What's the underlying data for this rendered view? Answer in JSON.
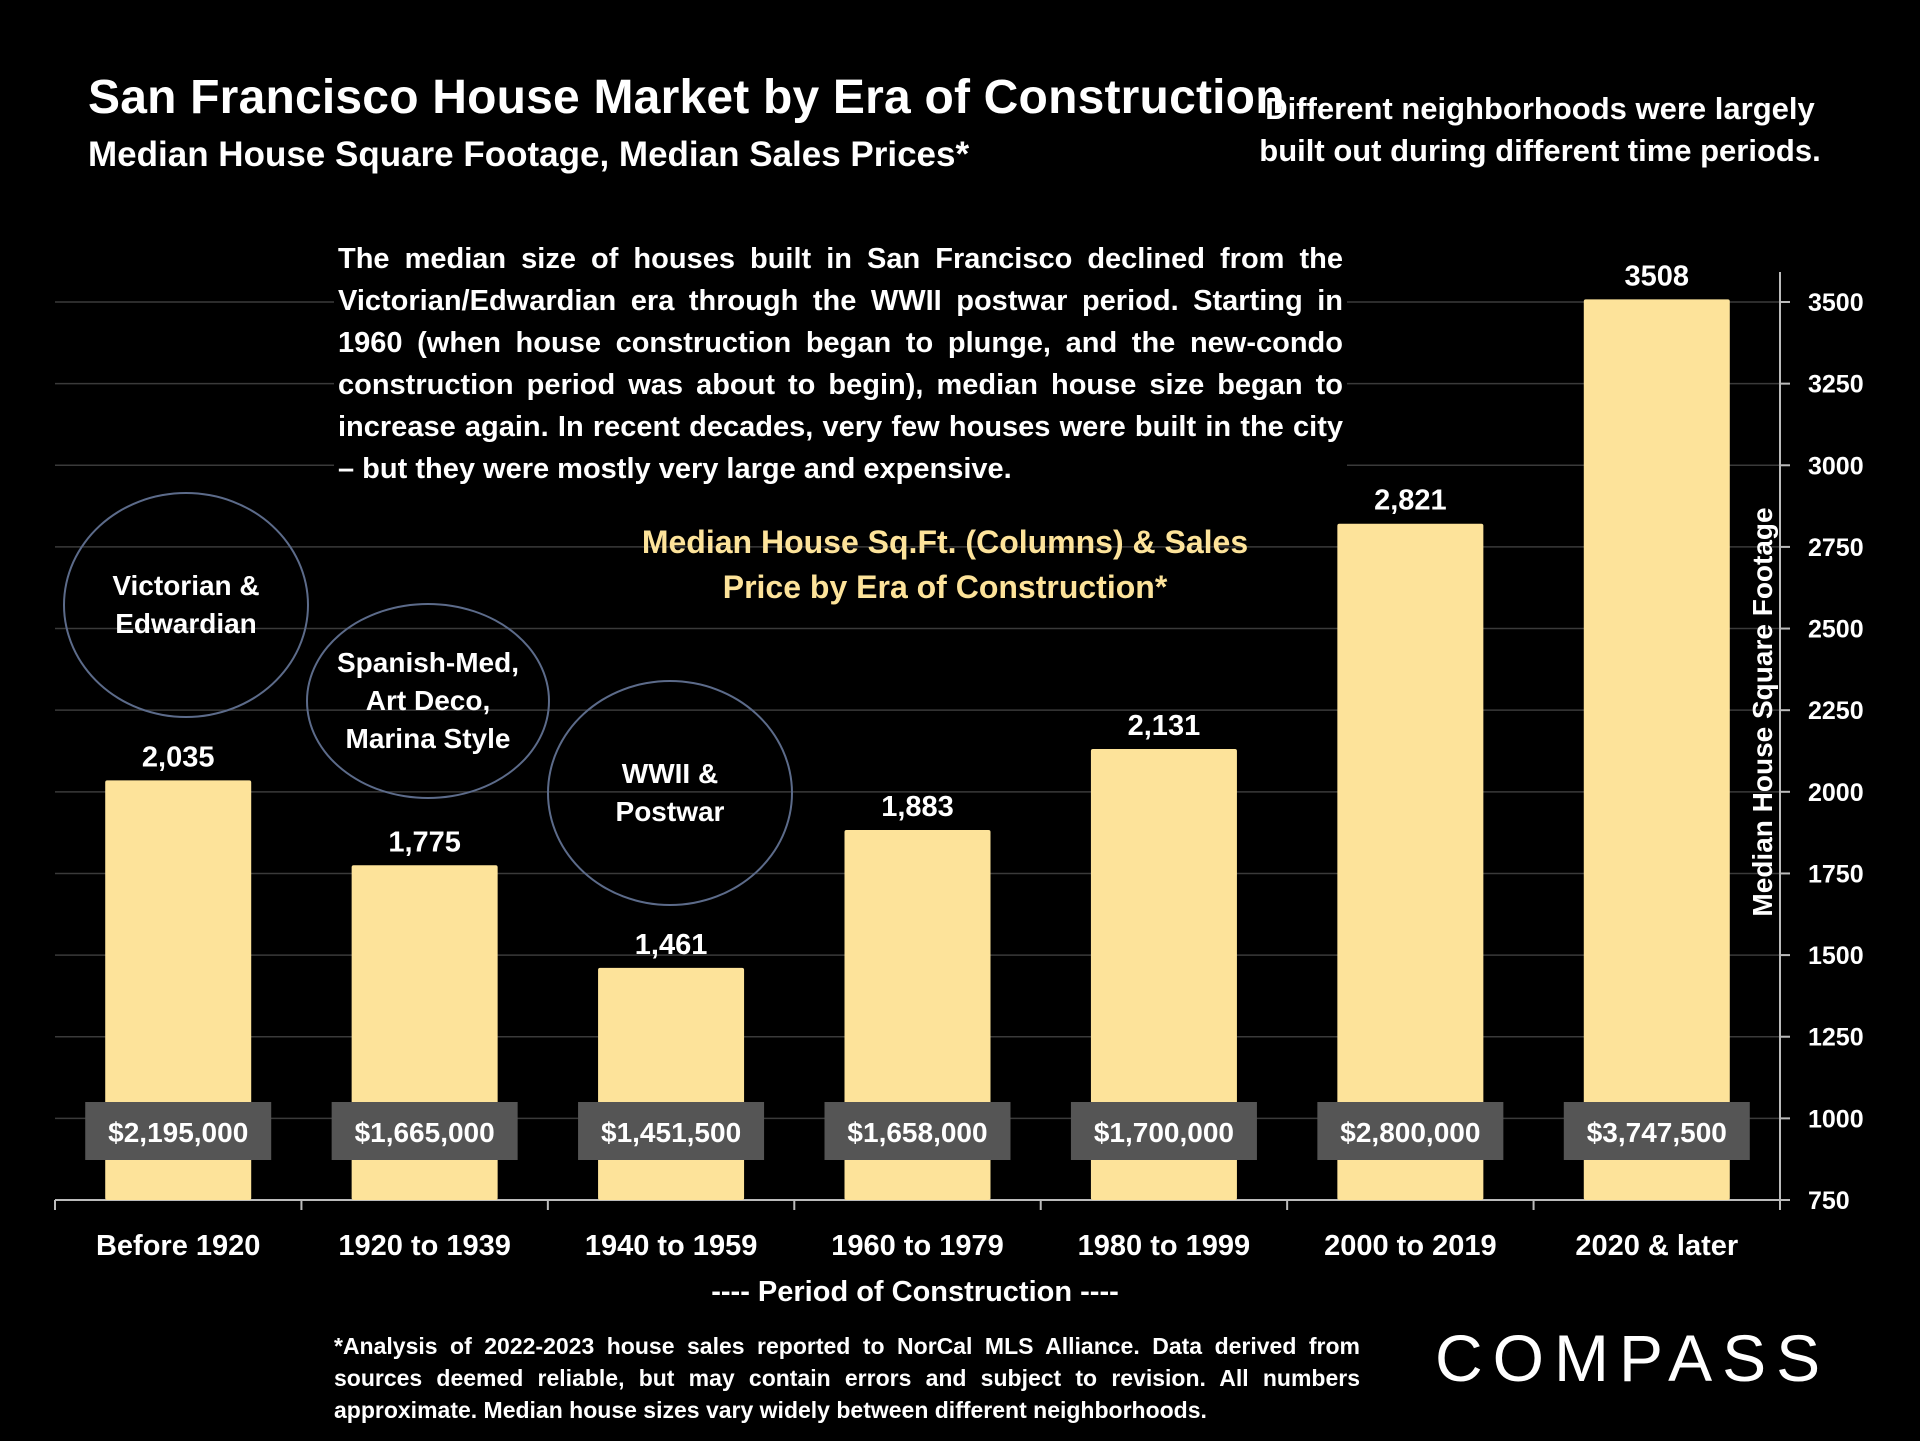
{
  "header": {
    "title": "San Francisco House Market by Era of Construction",
    "subtitle": "Median House Square Footage, Median Sales Prices*",
    "side_note": "Different neighborhoods were largely built out during different time periods."
  },
  "paragraph": "The median size of houses built in San Francisco declined from the Victorian/Edwardian era through the WWII postwar period. Starting in 1960 (when house construction began to plunge, and the new-condo construction period was about to begin), median house size began to increase again. In recent decades, very few houses were built in the city – but they were mostly very large and expensive.",
  "eras": [
    {
      "label": "Victorian & Edwardian"
    },
    {
      "label": "Spanish-Med, Art Deco, Marina Style"
    },
    {
      "label": "WWII & Postwar"
    }
  ],
  "footnote": "*Analysis of 2022-2023 house sales reported to NorCal MLS Alliance.  Data derived from sources deemed reliable, but may contain errors and subject to revision. All numbers approximate. Median house sizes vary widely between different neighborhoods.",
  "brand": "COMPASS",
  "colors": {
    "bar": "#FDE39A",
    "background": "#000000",
    "price_box": "#555555",
    "circle": "#5C6B8A",
    "gridline": "#3A3A3A"
  },
  "chart_data": {
    "type": "bar",
    "title": "Median House Sq.Ft. (Columns) & Sales Price by Era of Construction*",
    "xlabel": "----  Period of Construction  ----",
    "ylabel": "Median House Square Footage",
    "ylim": [
      750,
      3500
    ],
    "yticks": [
      "3500",
      "3250",
      "3000",
      "2750",
      "2500",
      "2250",
      "2000",
      "1750",
      "1500",
      "1250",
      "1000",
      "750"
    ],
    "categories": [
      "Before 1920",
      "1920 to 1939",
      "1940 to 1959",
      "1960 to 1979",
      "1980 to 1999",
      "2000 to 2019",
      "2020 & later"
    ],
    "values": [
      2035,
      1775,
      1461,
      1883,
      2131,
      2821,
      3508
    ],
    "value_labels": [
      "2,035",
      "1,775",
      "1,461",
      "1,883",
      "2,131",
      "2,821",
      "3508"
    ],
    "prices": [
      "$2,195,000",
      "$1,665,000",
      "$1,451,500",
      "$1,658,000",
      "$1,700,000",
      "$2,800,000",
      "$3,747,500"
    ]
  }
}
